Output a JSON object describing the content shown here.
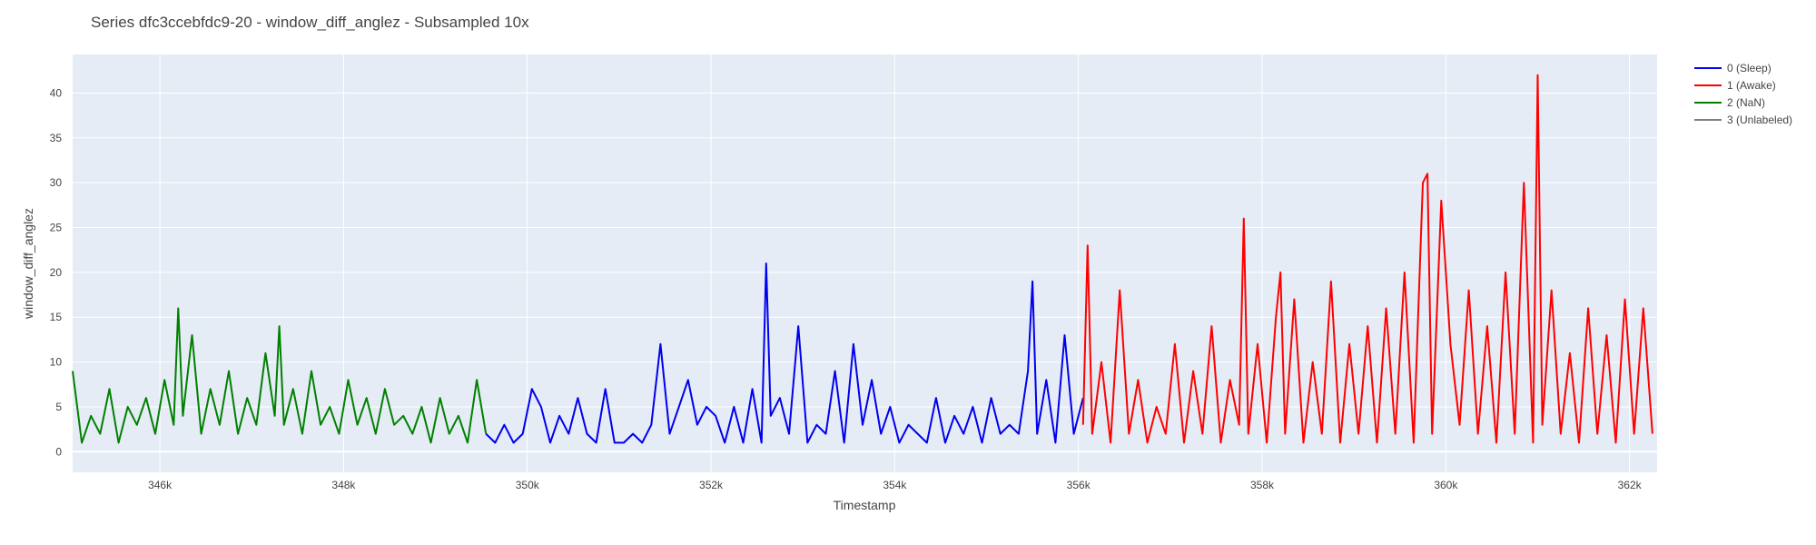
{
  "chart_data": {
    "type": "line",
    "title": "Series dfc3ccebfdc9-20 - window_diff_anglez - Subsampled 10x",
    "xlabel": "Timestamp",
    "ylabel": "window_diff_anglez",
    "xlim": [
      345050,
      362300
    ],
    "ylim": [
      -2.3,
      44.3
    ],
    "x_ticks": [
      346000,
      348000,
      350000,
      352000,
      354000,
      356000,
      358000,
      360000,
      362000
    ],
    "x_tick_labels": [
      "346k",
      "348k",
      "350k",
      "352k",
      "354k",
      "356k",
      "358k",
      "360k",
      "362k"
    ],
    "y_ticks": [
      0,
      5,
      10,
      15,
      20,
      25,
      30,
      35,
      40
    ],
    "y_tick_labels": [
      "0",
      "5",
      "10",
      "15",
      "20",
      "25",
      "30",
      "35",
      "40"
    ],
    "grid": true,
    "plot_background": "#e5ecf6",
    "legend_position": "right",
    "legend": [
      {
        "name": "0 (Sleep)",
        "color": "#0000ee"
      },
      {
        "name": "1 (Awake)",
        "color": "#ff0000"
      },
      {
        "name": "2 (NaN)",
        "color": "#008000"
      },
      {
        "name": "3 (Unlabeled)",
        "color": "#808080"
      }
    ],
    "series": [
      {
        "name": "2 (NaN)",
        "color": "#008000",
        "x": [
          345050,
          345150,
          345250,
          345350,
          345450,
          345550,
          345650,
          345750,
          345850,
          345950,
          346050,
          346150,
          346200,
          346250,
          346350,
          346450,
          346550,
          346650,
          346750,
          346850,
          346950,
          347050,
          347150,
          347250,
          347300,
          347350,
          347450,
          347550,
          347650,
          347750,
          347850,
          347950,
          348050,
          348150,
          348250,
          348350,
          348450,
          348550,
          348650,
          348750,
          348850,
          348950,
          349050,
          349150,
          349250,
          349350,
          349450,
          349550
        ],
        "y": [
          9,
          1,
          4,
          2,
          7,
          1,
          5,
          3,
          6,
          2,
          8,
          3,
          16,
          4,
          13,
          2,
          7,
          3,
          9,
          2,
          6,
          3,
          11,
          4,
          14,
          3,
          7,
          2,
          9,
          3,
          5,
          2,
          8,
          3,
          6,
          2,
          7,
          3,
          4,
          2,
          5,
          1,
          6,
          2,
          4,
          1,
          8,
          2
        ]
      },
      {
        "name": "0 (Sleep)",
        "color": "#0000ee",
        "x": [
          349550,
          349650,
          349750,
          349850,
          349950,
          350050,
          350150,
          350250,
          350350,
          350450,
          350550,
          350650,
          350750,
          350850,
          350950,
          351050,
          351150,
          351250,
          351350,
          351450,
          351550,
          351650,
          351750,
          351850,
          351950,
          352050,
          352150,
          352250,
          352350,
          352450,
          352550,
          352600,
          352650,
          352750,
          352850,
          352950,
          353050,
          353150,
          353250,
          353350,
          353450,
          353550,
          353650,
          353750,
          353850,
          353950,
          354050,
          354150,
          354250,
          354350,
          354450,
          354550,
          354650,
          354750,
          354850,
          354950,
          355050,
          355150,
          355250,
          355350,
          355450,
          355500,
          355550,
          355650,
          355750,
          355850,
          355950,
          356050
        ],
        "y": [
          2,
          1,
          3,
          1,
          2,
          7,
          5,
          1,
          4,
          2,
          6,
          2,
          1,
          7,
          1,
          1,
          2,
          1,
          3,
          12,
          2,
          5,
          8,
          3,
          5,
          4,
          1,
          5,
          1,
          7,
          1,
          21,
          4,
          6,
          2,
          14,
          1,
          3,
          2,
          9,
          1,
          12,
          3,
          8,
          2,
          5,
          1,
          3,
          2,
          1,
          6,
          1,
          4,
          2,
          5,
          1,
          6,
          2,
          3,
          2,
          9,
          19,
          2,
          8,
          1,
          13,
          2,
          6
        ]
      },
      {
        "name": "1 (Awake)",
        "color": "#ff0000",
        "x": [
          356050,
          356100,
          356150,
          356250,
          356350,
          356450,
          356550,
          356650,
          356750,
          356850,
          356950,
          357050,
          357150,
          357250,
          357350,
          357450,
          357550,
          357650,
          357750,
          357800,
          357850,
          357950,
          358050,
          358150,
          358200,
          358250,
          358350,
          358450,
          358550,
          358650,
          358750,
          358850,
          358950,
          359050,
          359150,
          359250,
          359350,
          359450,
          359550,
          359650,
          359750,
          359800,
          359850,
          359950,
          360050,
          360150,
          360250,
          360350,
          360450,
          360550,
          360650,
          360750,
          360850,
          360950,
          361000,
          361050,
          361150,
          361250,
          361350,
          361450,
          361550,
          361650,
          361750,
          361850,
          361950,
          362050,
          362150,
          362250
        ],
        "y": [
          3,
          23,
          2,
          10,
          1,
          18,
          2,
          8,
          1,
          5,
          2,
          12,
          1,
          9,
          2,
          14,
          1,
          8,
          3,
          26,
          2,
          12,
          1,
          15,
          20,
          2,
          17,
          1,
          10,
          2,
          19,
          1,
          12,
          2,
          14,
          1,
          16,
          2,
          20,
          1,
          30,
          31,
          2,
          28,
          12,
          3,
          18,
          2,
          14,
          1,
          20,
          2,
          30,
          1,
          42,
          3,
          18,
          2,
          11,
          1,
          16,
          2,
          13,
          1,
          17,
          2,
          16,
          2
        ]
      }
    ]
  }
}
